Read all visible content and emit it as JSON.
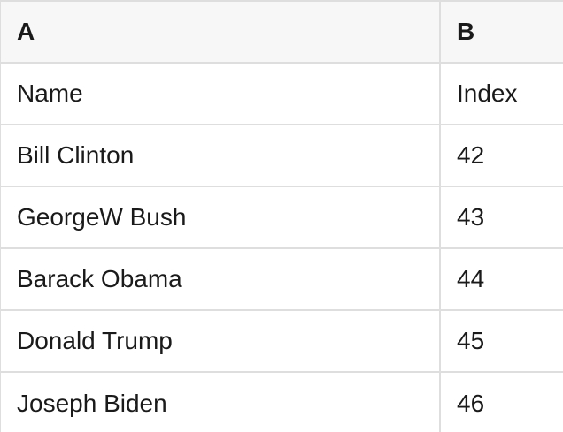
{
  "colors": {
    "header_bg": "#f7f7f7",
    "row_bg": "#ffffff",
    "border": "#dedede",
    "text": "#1a1a1a"
  },
  "table": {
    "column_headers": [
      {
        "label": "A"
      },
      {
        "label": "B"
      }
    ],
    "rows": [
      [
        "Name",
        "Index"
      ],
      [
        "Bill Clinton",
        "42"
      ],
      [
        "GeorgeW Bush",
        "43"
      ],
      [
        "Barack Obama",
        "44"
      ],
      [
        "Donald Trump",
        "45"
      ],
      [
        "Joseph Biden",
        "46"
      ]
    ]
  }
}
